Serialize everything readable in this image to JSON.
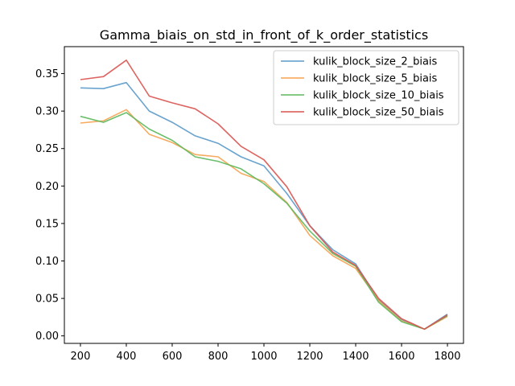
{
  "chart_data": {
    "type": "line",
    "title": "Gamma_biais_on_std_in_front_of_k_order_statistics",
    "xlabel": "",
    "ylabel": "",
    "x": [
      200,
      300,
      400,
      500,
      600,
      700,
      800,
      900,
      1000,
      1100,
      1200,
      1300,
      1400,
      1500,
      1600,
      1700,
      1800
    ],
    "xlim": [
      130,
      1870
    ],
    "ylim": [
      -0.01,
      0.386
    ],
    "xticks": [
      200,
      400,
      600,
      800,
      1000,
      1200,
      1400,
      1600,
      1800
    ],
    "yticks": [
      0.0,
      0.05,
      0.1,
      0.15,
      0.2,
      0.25,
      0.3,
      0.35
    ],
    "ytick_labels": [
      "0.00",
      "0.05",
      "0.10",
      "0.15",
      "0.20",
      "0.25",
      "0.30",
      "0.35"
    ],
    "grid": false,
    "legend_position": "top-right",
    "series": [
      {
        "name": "kulik_block_size_2_biais",
        "color": "#5a9ac9",
        "values": [
          0.331,
          0.33,
          0.338,
          0.3,
          0.285,
          0.267,
          0.257,
          0.239,
          0.227,
          0.19,
          0.147,
          0.115,
          0.096,
          0.048,
          0.022,
          0.009,
          0.029
        ]
      },
      {
        "name": "kulik_block_size_5_biais",
        "color": "#f5a24e",
        "values": [
          0.284,
          0.287,
          0.302,
          0.269,
          0.258,
          0.242,
          0.239,
          0.217,
          0.206,
          0.178,
          0.134,
          0.107,
          0.09,
          0.047,
          0.02,
          0.009,
          0.026
        ]
      },
      {
        "name": "kulik_block_size_10_biais",
        "color": "#5cb85c",
        "values": [
          0.293,
          0.285,
          0.298,
          0.276,
          0.261,
          0.239,
          0.233,
          0.223,
          0.203,
          0.177,
          0.14,
          0.11,
          0.093,
          0.045,
          0.019,
          0.009,
          0.027
        ]
      },
      {
        "name": "kulik_block_size_50_biais",
        "color": "#d9534f",
        "values": [
          0.342,
          0.346,
          0.368,
          0.32,
          0.311,
          0.303,
          0.283,
          0.253,
          0.235,
          0.199,
          0.147,
          0.112,
          0.094,
          0.05,
          0.023,
          0.009,
          0.028
        ]
      }
    ]
  }
}
